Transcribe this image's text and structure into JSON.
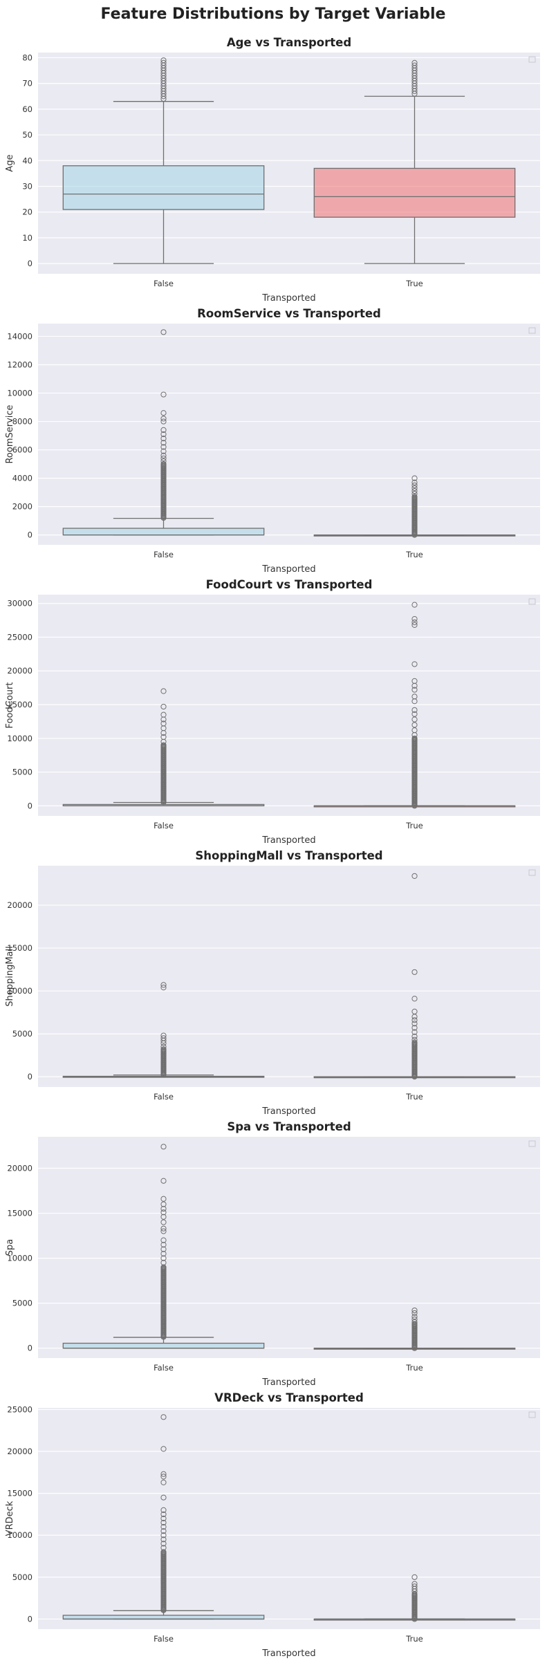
{
  "figure": {
    "title": "Feature Distributions by Target Variable",
    "background": "#ffffff",
    "axes_background": "#eaeaf2",
    "grid_color": "#ffffff",
    "line_color": "#6e6e6e",
    "palette": {
      "False": "#add8e6",
      "True": "#f08080"
    }
  },
  "chart_data": [
    {
      "type": "box",
      "title": "Age vs Transported",
      "xlabel": "Transported",
      "ylabel": "Age",
      "categories": [
        "False",
        "True"
      ],
      "ylim": [
        -4,
        82
      ],
      "yticks": [
        0,
        10,
        20,
        30,
        40,
        50,
        60,
        70,
        80
      ],
      "ytick_labels": [
        "0",
        "10",
        "20",
        "30",
        "40",
        "50",
        "60",
        "70",
        "80"
      ],
      "grid": true,
      "legend": "top-right (empty)",
      "boxes": [
        {
          "category": "False",
          "min": 0,
          "q1": 21,
          "median": 27,
          "q3": 38,
          "whisker_high": 63,
          "outliers": [
            64,
            65,
            66,
            67,
            68,
            69,
            70,
            71,
            72,
            73,
            74,
            75,
            76,
            77,
            78,
            79
          ]
        },
        {
          "category": "True",
          "min": 0,
          "q1": 18,
          "median": 26,
          "q3": 37,
          "whisker_high": 65,
          "outliers": [
            66,
            67,
            68,
            69,
            70,
            71,
            72,
            73,
            74,
            75,
            76,
            77,
            78
          ]
        }
      ]
    },
    {
      "type": "box",
      "title": "RoomService vs Transported",
      "xlabel": "Transported",
      "ylabel": "RoomService",
      "categories": [
        "False",
        "True"
      ],
      "ylim": [
        -700,
        14900
      ],
      "yticks": [
        0,
        2000,
        4000,
        6000,
        8000,
        10000,
        12000,
        14000
      ],
      "ytick_labels": [
        "0",
        "2000",
        "4000",
        "6000",
        "8000",
        "10000",
        "12000",
        "14000"
      ],
      "grid": true,
      "legend": "top-right (empty)",
      "boxes": [
        {
          "category": "False",
          "min": 0,
          "q1": 0,
          "median": 0,
          "q3": 470,
          "whisker_high": 1170,
          "outlier_band": [
            1200,
            5000
          ],
          "outliers": [
            5200,
            5400,
            5600,
            5900,
            6200,
            6500,
            6800,
            7100,
            7400,
            8000,
            8200,
            8600,
            9900,
            14300
          ]
        },
        {
          "category": "True",
          "min": 0,
          "q1": 0,
          "median": 0,
          "q3": 0,
          "whisker_high": 0,
          "outlier_band": [
            0,
            2700
          ],
          "outliers": [
            2900,
            3100,
            3300,
            3500,
            3700,
            4000
          ]
        }
      ]
    },
    {
      "type": "box",
      "title": "FoodCourt vs Transported",
      "xlabel": "Transported",
      "ylabel": "FoodCourt",
      "categories": [
        "False",
        "True"
      ],
      "ylim": [
        -1500,
        31300
      ],
      "yticks": [
        0,
        5000,
        10000,
        15000,
        20000,
        25000,
        30000
      ],
      "ytick_labels": [
        "0",
        "5000",
        "10000",
        "15000",
        "20000",
        "25000",
        "30000"
      ],
      "grid": true,
      "legend": "top-right (empty)",
      "boxes": [
        {
          "category": "False",
          "min": 0,
          "q1": 0,
          "median": 0,
          "q3": 200,
          "whisker_high": 500,
          "outlier_band": [
            520,
            9000
          ],
          "outliers": [
            9500,
            10200,
            10800,
            11500,
            12200,
            12800,
            13500,
            14700,
            17000
          ]
        },
        {
          "category": "True",
          "min": 0,
          "q1": 0,
          "median": 0,
          "q3": 0,
          "whisker_high": 0,
          "outlier_band": [
            0,
            10000
          ],
          "outliers": [
            10500,
            11200,
            12000,
            12800,
            13600,
            14200,
            15500,
            16200,
            17200,
            17800,
            18500,
            21000,
            26800,
            27200,
            27700,
            29800
          ]
        }
      ]
    },
    {
      "type": "box",
      "title": "ShoppingMall vs Transported",
      "xlabel": "Transported",
      "ylabel": "ShoppingMall",
      "categories": [
        "False",
        "True"
      ],
      "ylim": [
        -1200,
        24600
      ],
      "yticks": [
        0,
        5000,
        10000,
        15000,
        20000
      ],
      "ytick_labels": [
        "0",
        "5000",
        "10000",
        "15000",
        "20000"
      ],
      "grid": true,
      "legend": "top-right (empty)",
      "boxes": [
        {
          "category": "False",
          "min": 0,
          "q1": 0,
          "median": 0,
          "q3": 50,
          "whisker_high": 200,
          "outlier_band": [
            220,
            3200
          ],
          "outliers": [
            3500,
            3900,
            4200,
            4500,
            4800,
            10400,
            10700
          ]
        },
        {
          "category": "True",
          "min": 0,
          "q1": 0,
          "median": 0,
          "q3": 0,
          "whisker_high": 0,
          "outlier_band": [
            0,
            4000
          ],
          "outliers": [
            4300,
            4700,
            5200,
            5700,
            6200,
            6600,
            7000,
            7600,
            9100,
            12200,
            23400
          ]
        }
      ]
    },
    {
      "type": "box",
      "title": "Spa vs Transported",
      "xlabel": "Transported",
      "ylabel": "Spa",
      "categories": [
        "False",
        "True"
      ],
      "ylim": [
        -1100,
        23500
      ],
      "yticks": [
        0,
        5000,
        10000,
        15000,
        20000
      ],
      "ytick_labels": [
        "0",
        "5000",
        "10000",
        "15000",
        "20000"
      ],
      "grid": true,
      "legend": "top-right (empty)",
      "boxes": [
        {
          "category": "False",
          "min": 0,
          "q1": 0,
          "median": 0,
          "q3": 550,
          "whisker_high": 1200,
          "outlier_band": [
            1250,
            9000
          ],
          "outliers": [
            9500,
            10000,
            10500,
            11000,
            11500,
            12000,
            13000,
            13300,
            14000,
            14600,
            15100,
            15500,
            16000,
            16600,
            18600,
            22400
          ]
        },
        {
          "category": "True",
          "min": 0,
          "q1": 0,
          "median": 0,
          "q3": 0,
          "whisker_high": 0,
          "outlier_band": [
            0,
            2700
          ],
          "outliers": [
            2900,
            3200,
            3500,
            3900,
            4200
          ]
        }
      ]
    },
    {
      "type": "box",
      "title": "VRDeck vs Transported",
      "xlabel": "Transported",
      "ylabel": "VRDeck",
      "categories": [
        "False",
        "True"
      ],
      "ylim": [
        -1200,
        25200
      ],
      "yticks": [
        0,
        5000,
        10000,
        15000,
        20000,
        25000
      ],
      "ytick_labels": [
        "0",
        "5000",
        "10000",
        "15000",
        "20000",
        "25000"
      ],
      "grid": true,
      "legend": "top-right (empty)",
      "boxes": [
        {
          "category": "False",
          "min": 0,
          "q1": 0,
          "median": 0,
          "q3": 450,
          "whisker_high": 1000,
          "outlier_band": [
            1050,
            8000
          ],
          "outliers": [
            8500,
            9000,
            9500,
            10000,
            10500,
            11000,
            11500,
            12000,
            12500,
            13000,
            14500,
            16300,
            17000,
            17300,
            20300,
            24100
          ]
        },
        {
          "category": "True",
          "min": 0,
          "q1": 0,
          "median": 0,
          "q3": 0,
          "whisker_high": 0,
          "outlier_band": [
            0,
            3000
          ],
          "outliers": [
            3300,
            3600,
            3900,
            4200,
            5000
          ]
        }
      ]
    }
  ]
}
